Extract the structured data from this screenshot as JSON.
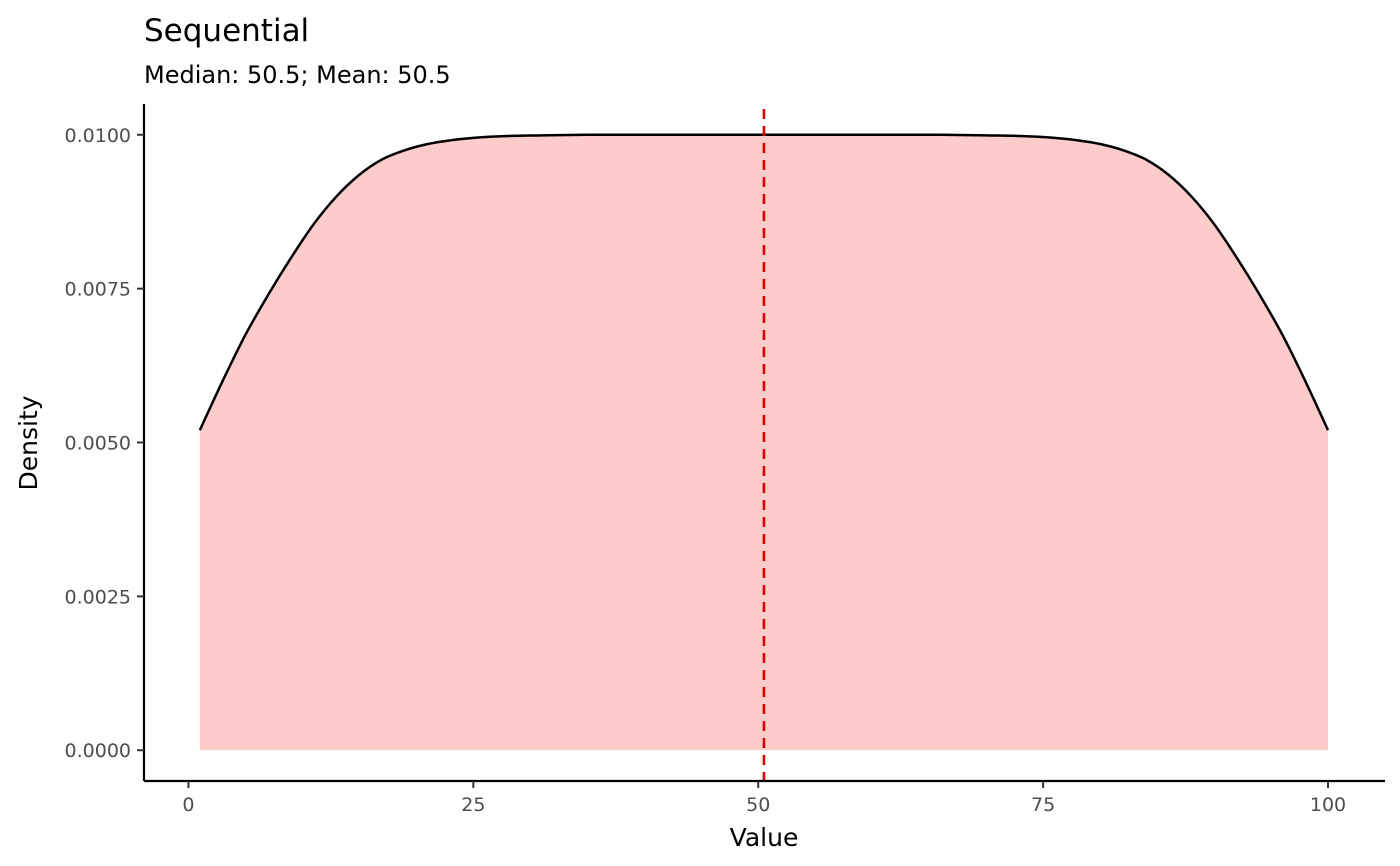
{
  "chart_data": {
    "type": "area",
    "title": "Sequential",
    "subtitle": "Median: 50.5; Mean: 50.5",
    "xlabel": "Value",
    "ylabel": "Density",
    "xlim": [
      -3.9,
      105
    ],
    "ylim": [
      -0.0005,
      0.0105
    ],
    "x_ticks": [
      0,
      25,
      50,
      75,
      100
    ],
    "x_tick_labels": [
      "0",
      "25",
      "50",
      "75",
      "100"
    ],
    "y_ticks": [
      0,
      0.0025,
      0.005,
      0.0075,
      0.01
    ],
    "y_tick_labels": [
      "0.0000",
      "0.0025",
      "0.0050",
      "0.0075",
      "0.0100"
    ],
    "grid": false,
    "series": [
      {
        "x": [
          1,
          3,
          5,
          7,
          9,
          11,
          13,
          15,
          17,
          19,
          21,
          23,
          25,
          28,
          31,
          35,
          40,
          45,
          50.5,
          56,
          61,
          66,
          70,
          73,
          76,
          78,
          80,
          82,
          84,
          86,
          88,
          90,
          92,
          94,
          96,
          98,
          100
        ],
        "y": [
          0.0052,
          0.006,
          0.00675,
          0.0074,
          0.008,
          0.00855,
          0.009,
          0.00935,
          0.0096,
          0.00975,
          0.00985,
          0.00991,
          0.00995,
          0.00998,
          0.00999,
          0.01,
          0.01,
          0.01,
          0.01,
          0.01,
          0.01,
          0.01,
          0.00999,
          0.00998,
          0.00995,
          0.00991,
          0.00985,
          0.00975,
          0.0096,
          0.00935,
          0.009,
          0.00855,
          0.008,
          0.0074,
          0.00675,
          0.006,
          0.0052
        ]
      }
    ],
    "fill_color": "#fdcbca",
    "line_color": "#000000",
    "reference_line": {
      "x": 50.5,
      "color": "#dd0000",
      "style": "dashed"
    }
  }
}
